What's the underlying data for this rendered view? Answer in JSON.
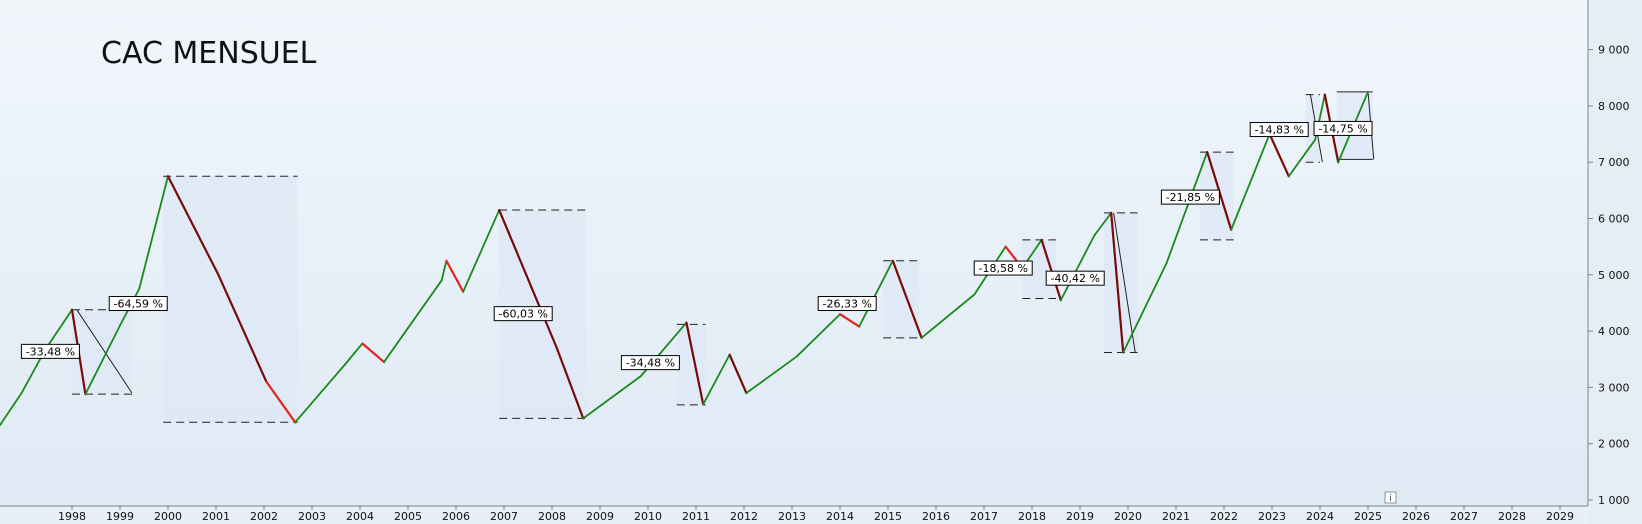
{
  "chart_data": {
    "type": "line",
    "title": "CAC MENSUEL",
    "y_ticks": [
      "1 000",
      "2 000",
      "3 000",
      "4 000",
      "5 000",
      "6 000",
      "7 000",
      "8 000",
      "9 000"
    ],
    "y_tick_values": [
      1000,
      2000,
      3000,
      4000,
      5000,
      6000,
      7000,
      8000,
      9000
    ],
    "x_ticks": [
      "1998",
      "1999",
      "2000",
      "2001",
      "2002",
      "2003",
      "2004",
      "2005",
      "2006",
      "2007",
      "2008",
      "2009",
      "2010",
      "2011",
      "2012",
      "2013",
      "2014",
      "2015",
      "2016",
      "2017",
      "2018",
      "2019",
      "2020",
      "2021",
      "2022",
      "2023",
      "2024",
      "2025",
      "2026",
      "2027",
      "2028",
      "2029"
    ],
    "xlim": [
      1997.0,
      2030.0
    ],
    "ylim": [
      970,
      9850
    ],
    "series": [
      {
        "x": [
          1997.0,
          1997.45,
          1997.95,
          1998.5,
          1998.78,
          1999.5,
          1999.9,
          2000.5,
          2001.55,
          2002.55,
          2003.15,
          2004.2,
          2004.55,
          2005.0,
          2006.2,
          2006.3,
          2006.65,
          2007.4,
          2008.6,
          2009.15,
          2010.35,
          2011.3,
          2011.65,
          2012.2,
          2012.55,
          2013.6,
          2014.5,
          2014.9,
          2015.6,
          2016.2,
          2017.3,
          2017.95,
          2018.3,
          2018.7,
          2019.1,
          2019.8,
          2020.15,
          2020.4,
          2021.3,
          2022.15,
          2022.65,
          2023.45,
          2023.85,
          2024.4,
          2024.6,
          2024.88,
          2025.5
        ],
        "y": [
          2330,
          2900,
          3680,
          4380,
          2880,
          4100,
          4750,
          6750,
          5000,
          3100,
          2380,
          3420,
          3780,
          3450,
          4900,
          5250,
          4700,
          6150,
          3700,
          2450,
          3200,
          4150,
          2700,
          3580,
          2900,
          3550,
          4300,
          4080,
          5250,
          3880,
          4650,
          5500,
          5120,
          5620,
          4550,
          5700,
          6100,
          3620,
          5200,
          7180,
          5800,
          7500,
          6750,
          7400,
          8200,
          7000,
          8250
        ]
      }
    ],
    "drawdowns": [
      {
        "label": "-33,48 %"
      },
      {
        "label": "-64,59 %"
      },
      {
        "label": "-60,03 %"
      },
      {
        "label": "-34,48 %"
      },
      {
        "label": "-26,33 %"
      },
      {
        "label": "-18,58 %"
      },
      {
        "label": "-40,42 %"
      },
      {
        "label": "-21,85 %"
      },
      {
        "label": "-14,83 %"
      },
      {
        "label": "-14,75 %"
      }
    ],
    "info_icon": "i",
    "colors": {
      "background": "#e9f1f8",
      "up": "#1a8a1a",
      "down": "#e8231c",
      "dark_down": "#7a0a0a",
      "band": "#dde8f6",
      "axis_panel": "#e5eef7"
    }
  }
}
